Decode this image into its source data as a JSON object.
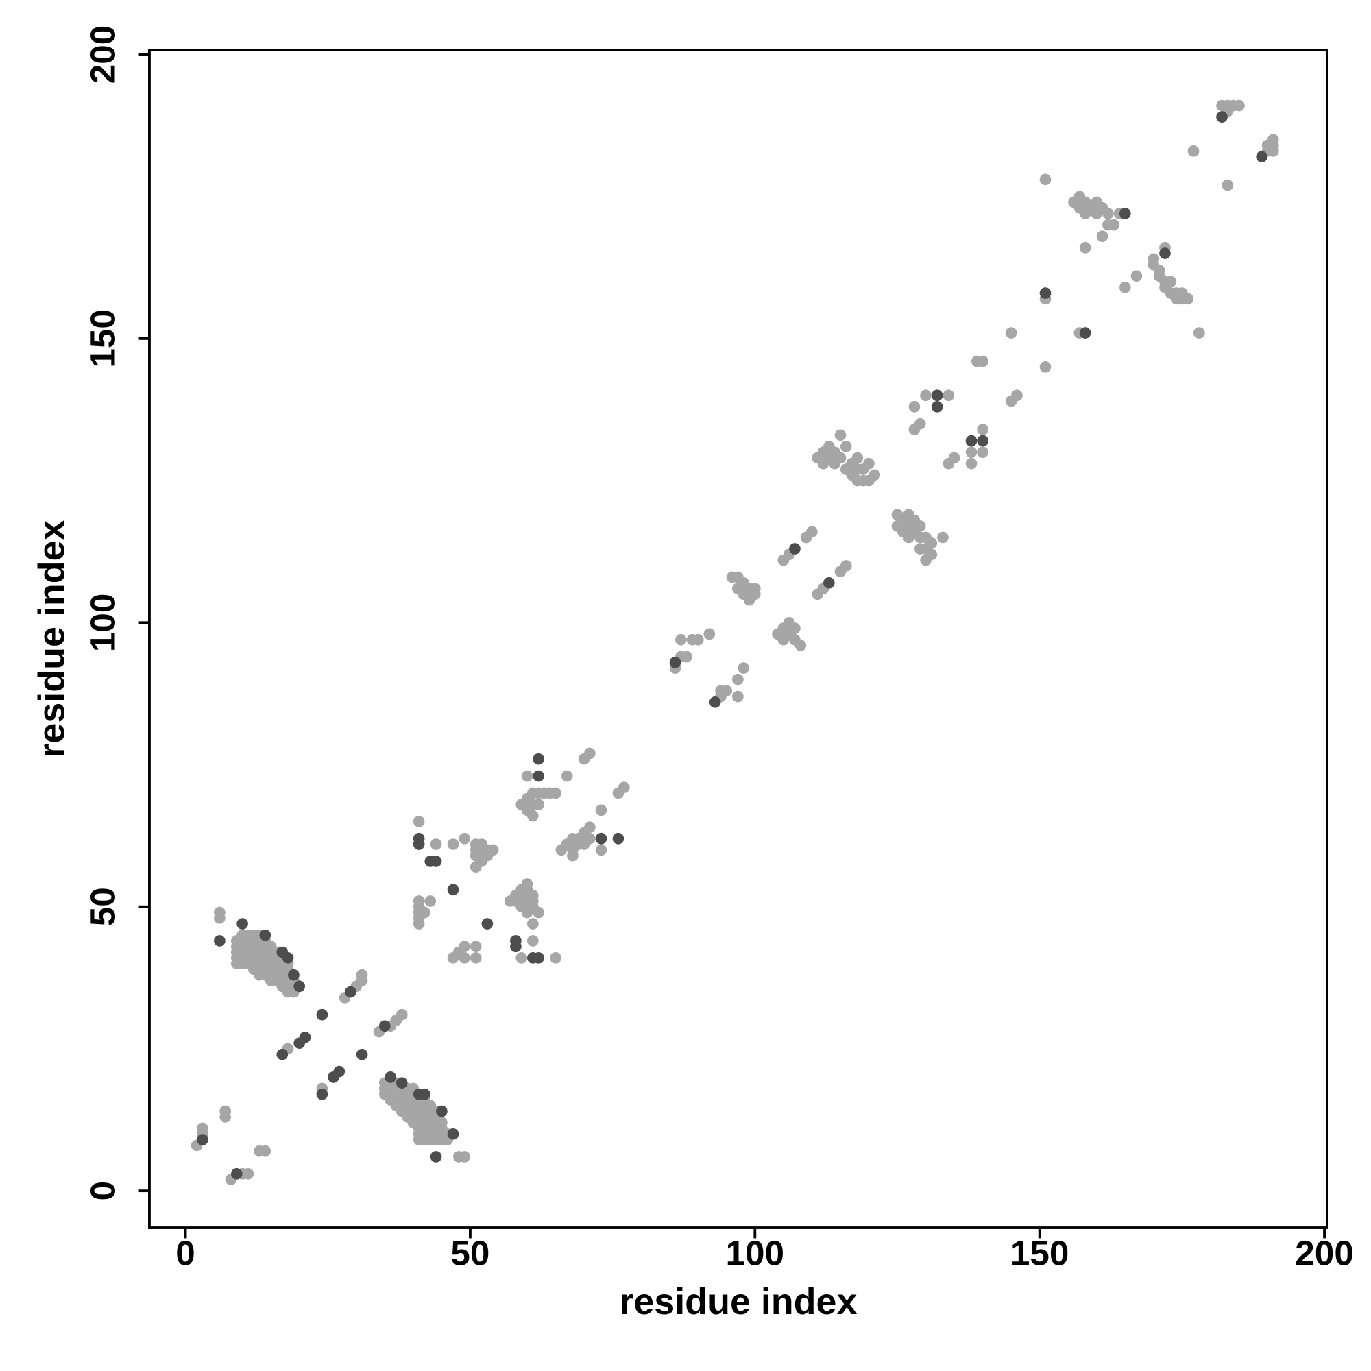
{
  "chart_data": {
    "type": "scatter",
    "x_label": "residue index",
    "y_label": "residue index",
    "xlim": [
      -6.33,
      200.46
    ],
    "ylim": [
      -6.5,
      200.77
    ],
    "xticks": [
      0,
      50,
      100,
      150,
      200
    ],
    "yticks": [
      0,
      50,
      100,
      150,
      200
    ],
    "series": [
      {
        "color": "#a6a6a6",
        "x": [
          2,
          3,
          3,
          7,
          7,
          8,
          10,
          11,
          13,
          14,
          6,
          6,
          9,
          9,
          9,
          9,
          9,
          10,
          10,
          10,
          10,
          10,
          10,
          11,
          11,
          11,
          11,
          11,
          11,
          12,
          12,
          12,
          12,
          12,
          12,
          12,
          13,
          13,
          13,
          13,
          13,
          13,
          13,
          13,
          14,
          14,
          14,
          14,
          14,
          14,
          14,
          15,
          15,
          15,
          15,
          15,
          15,
          15,
          16,
          16,
          16,
          16,
          16,
          16,
          17,
          17,
          17,
          17,
          17,
          17,
          18,
          18,
          18,
          18,
          18,
          18,
          19,
          19,
          19,
          19,
          18,
          28,
          30,
          31,
          31,
          24,
          34,
          36,
          37,
          38,
          35,
          35,
          35,
          36,
          36,
          36,
          36,
          37,
          37,
          37,
          37,
          37,
          38,
          38,
          38,
          38,
          38,
          39,
          39,
          39,
          39,
          39,
          39,
          40,
          40,
          40,
          40,
          40,
          40,
          40,
          41,
          41,
          41,
          41,
          41,
          41,
          41,
          41,
          42,
          42,
          42,
          42,
          42,
          42,
          42,
          42,
          43,
          43,
          43,
          43,
          43,
          43,
          43,
          44,
          44,
          44,
          44,
          44,
          44,
          45,
          45,
          45,
          45,
          46,
          46,
          48,
          49,
          41,
          44,
          41,
          41,
          41,
          41,
          41,
          43,
          42,
          47,
          49,
          51,
          51,
          51,
          52,
          52,
          52,
          53,
          53,
          54,
          51,
          52,
          47,
          48,
          49,
          51,
          51,
          49,
          57,
          58,
          58,
          59,
          59,
          59,
          59,
          60,
          60,
          60,
          60,
          60,
          60,
          61,
          61,
          61,
          61,
          62,
          59,
          65,
          61,
          60,
          67,
          59,
          60,
          60,
          61,
          61,
          61,
          62,
          62,
          63,
          64,
          65,
          70,
          71,
          73,
          76,
          77,
          66,
          67,
          68,
          68,
          69,
          69,
          70,
          70,
          71,
          71,
          68,
          73,
          86,
          87,
          87,
          88,
          89,
          90,
          92,
          94,
          94,
          95,
          97,
          97,
          98,
          96,
          97,
          97,
          98,
          98,
          99,
          99,
          100,
          100,
          104,
          105,
          105,
          106,
          106,
          107,
          107,
          108,
          105,
          106,
          109,
          110,
          111,
          112,
          115,
          116,
          111,
          112,
          112,
          113,
          113,
          114,
          114,
          115,
          115,
          116,
          116,
          117,
          117,
          118,
          118,
          118,
          119,
          119,
          120,
          120,
          121,
          125,
          125,
          126,
          126,
          127,
          127,
          127,
          128,
          128,
          129,
          129,
          129,
          130,
          130,
          130,
          131,
          131,
          133,
          128,
          129,
          128,
          130,
          134,
          134,
          135,
          138,
          138,
          140,
          140,
          139,
          140,
          145,
          146,
          145,
          151,
          151,
          151,
          157,
          156,
          157,
          157,
          158,
          158,
          159,
          160,
          160,
          161,
          162,
          158,
          161,
          164,
          162,
          163,
          165,
          167,
          170,
          170,
          171,
          171,
          172,
          172,
          173,
          173,
          174,
          174,
          175,
          175,
          176,
          172,
          178,
          177,
          183,
          182,
          183,
          184,
          185,
          183,
          190,
          190,
          191,
          191,
          191
        ],
        "values": [
          8,
          11,
          10,
          14,
          13,
          2,
          3,
          3,
          7,
          7,
          49,
          48,
          40,
          41,
          42,
          43,
          44,
          40,
          41,
          42,
          43,
          44,
          45,
          40,
          41,
          42,
          43,
          44,
          45,
          39,
          40,
          41,
          42,
          43,
          44,
          45,
          38,
          39,
          40,
          41,
          42,
          43,
          44,
          45,
          38,
          39,
          40,
          41,
          42,
          43,
          44,
          37,
          38,
          39,
          40,
          41,
          42,
          43,
          37,
          38,
          39,
          40,
          41,
          42,
          36,
          37,
          38,
          39,
          40,
          41,
          35,
          36,
          37,
          38,
          39,
          40,
          35,
          36,
          37,
          38,
          25,
          34,
          36,
          37,
          38,
          18,
          28,
          29,
          30,
          31,
          17,
          18,
          19,
          16,
          17,
          18,
          19,
          15,
          16,
          17,
          18,
          19,
          14,
          15,
          16,
          17,
          18,
          13,
          14,
          15,
          16,
          17,
          18,
          12,
          13,
          14,
          15,
          16,
          17,
          18,
          9,
          10,
          11,
          12,
          13,
          14,
          15,
          16,
          9,
          10,
          11,
          12,
          13,
          14,
          15,
          16,
          9,
          10,
          11,
          12,
          13,
          14,
          15,
          9,
          10,
          11,
          12,
          13,
          14,
          9,
          10,
          11,
          12,
          9,
          10,
          6,
          6,
          65,
          61,
          51,
          50,
          49,
          48,
          47,
          51,
          49,
          61,
          62,
          59,
          60,
          61,
          59,
          60,
          61,
          59,
          60,
          60,
          57,
          58,
          41,
          42,
          43,
          43,
          41,
          41,
          51,
          51,
          52,
          50,
          51,
          52,
          53,
          49,
          50,
          51,
          52,
          53,
          54,
          50,
          51,
          52,
          47,
          49,
          41,
          41,
          44,
          73,
          73,
          68,
          67,
          69,
          66,
          68,
          70,
          68,
          70,
          70,
          70,
          70,
          76,
          77,
          67,
          70,
          71,
          60,
          61,
          60,
          62,
          61,
          62,
          61,
          63,
          64,
          62,
          59,
          60,
          92,
          97,
          94,
          94,
          97,
          97,
          98,
          87,
          88,
          88,
          87,
          90,
          92,
          108,
          108,
          106,
          105,
          107,
          104,
          106,
          105,
          106,
          98,
          97,
          99,
          98,
          100,
          97,
          99,
          96,
          111,
          112,
          115,
          116,
          105,
          106,
          109,
          110,
          129,
          128,
          130,
          129,
          131,
          128,
          130,
          129,
          133,
          131,
          127,
          126,
          128,
          125,
          127,
          129,
          125,
          127,
          125,
          128,
          126,
          117,
          119,
          116,
          118,
          115,
          117,
          119,
          116,
          118,
          113,
          115,
          117,
          111,
          113,
          115,
          112,
          114,
          115,
          134,
          135,
          138,
          140,
          140,
          128,
          129,
          128,
          130,
          130,
          134,
          146,
          146,
          139,
          140,
          151,
          145,
          157,
          178,
          151,
          174,
          173,
          175,
          172,
          174,
          173,
          172,
          174,
          173,
          172,
          166,
          168,
          172,
          170,
          170,
          159,
          161,
          163,
          164,
          162,
          161,
          160,
          159,
          160,
          158,
          158,
          157,
          157,
          158,
          157,
          166,
          151,
          183,
          177,
          191,
          191,
          191,
          191,
          190,
          183,
          184,
          183,
          184,
          185
        ]
      },
      {
        "color": "#4d4d4d",
        "x": [
          3,
          9,
          6,
          10,
          14,
          17,
          18,
          19,
          20,
          17,
          20,
          21,
          24,
          29,
          31,
          24,
          26,
          27,
          35,
          36,
          38,
          41,
          42,
          45,
          47,
          44,
          41,
          41,
          43,
          44,
          47,
          53,
          58,
          58,
          61,
          62,
          62,
          62,
          73,
          76,
          86,
          93,
          107,
          113,
          132,
          132,
          138,
          140,
          151,
          158,
          165,
          172,
          182,
          189
        ],
        "values": [
          9,
          3,
          44,
          47,
          45,
          42,
          41,
          38,
          36,
          24,
          26,
          27,
          31,
          35,
          24,
          17,
          20,
          21,
          29,
          20,
          19,
          17,
          17,
          14,
          10,
          6,
          62,
          61,
          58,
          58,
          53,
          47,
          44,
          43,
          41,
          41,
          76,
          73,
          62,
          62,
          93,
          86,
          113,
          107,
          140,
          138,
          132,
          132,
          158,
          151,
          172,
          165,
          189,
          182
        ]
      }
    ]
  }
}
